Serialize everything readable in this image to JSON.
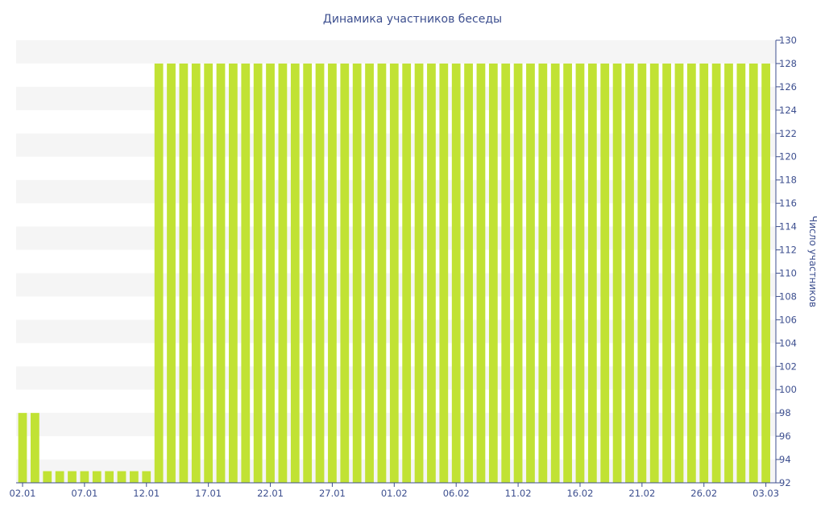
{
  "chart_data": {
    "type": "bar",
    "title": "Динамика участников беседы",
    "xlabel": "",
    "ylabel": "Число участников",
    "ylim": [
      92,
      130
    ],
    "yticks": [
      92,
      94,
      96,
      98,
      100,
      102,
      104,
      106,
      108,
      110,
      112,
      114,
      116,
      118,
      120,
      122,
      124,
      126,
      128,
      130
    ],
    "x_tick_labels": [
      "02.01",
      "07.01",
      "12.01",
      "17.01",
      "22.01",
      "27.01",
      "01.02",
      "06.02",
      "11.02",
      "16.02",
      "21.02",
      "26.02",
      "03.03"
    ],
    "y_axis_position": "right",
    "grid": "alternating horizontal bands",
    "bar_color": "#c1e234",
    "categories": [
      "02.01",
      "03.01",
      "04.01",
      "05.01",
      "06.01",
      "07.01",
      "08.01",
      "09.01",
      "10.01",
      "11.01",
      "12.01",
      "13.01",
      "14.01",
      "15.01",
      "16.01",
      "17.01",
      "18.01",
      "19.01",
      "20.01",
      "21.01",
      "22.01",
      "23.01",
      "24.01",
      "25.01",
      "26.01",
      "27.01",
      "28.01",
      "29.01",
      "30.01",
      "31.01",
      "01.02",
      "02.02",
      "03.02",
      "04.02",
      "05.02",
      "06.02",
      "07.02",
      "08.02",
      "09.02",
      "10.02",
      "11.02",
      "12.02",
      "13.02",
      "14.02",
      "15.02",
      "16.02",
      "17.02",
      "18.02",
      "19.02",
      "20.02",
      "21.02",
      "22.02",
      "23.02",
      "24.02",
      "25.02",
      "26.02",
      "27.02",
      "28.02",
      "01.03",
      "02.03",
      "03.03"
    ],
    "values": [
      98,
      98,
      93,
      93,
      93,
      93,
      93,
      93,
      93,
      93,
      93,
      128,
      128,
      128,
      128,
      128,
      128,
      128,
      128,
      128,
      128,
      128,
      128,
      128,
      128,
      128,
      128,
      128,
      128,
      128,
      128,
      128,
      128,
      128,
      128,
      128,
      128,
      128,
      128,
      128,
      128,
      128,
      128,
      128,
      128,
      128,
      128,
      128,
      128,
      128,
      128,
      128,
      128,
      128,
      128,
      128,
      128,
      128,
      128,
      128,
      128
    ]
  }
}
